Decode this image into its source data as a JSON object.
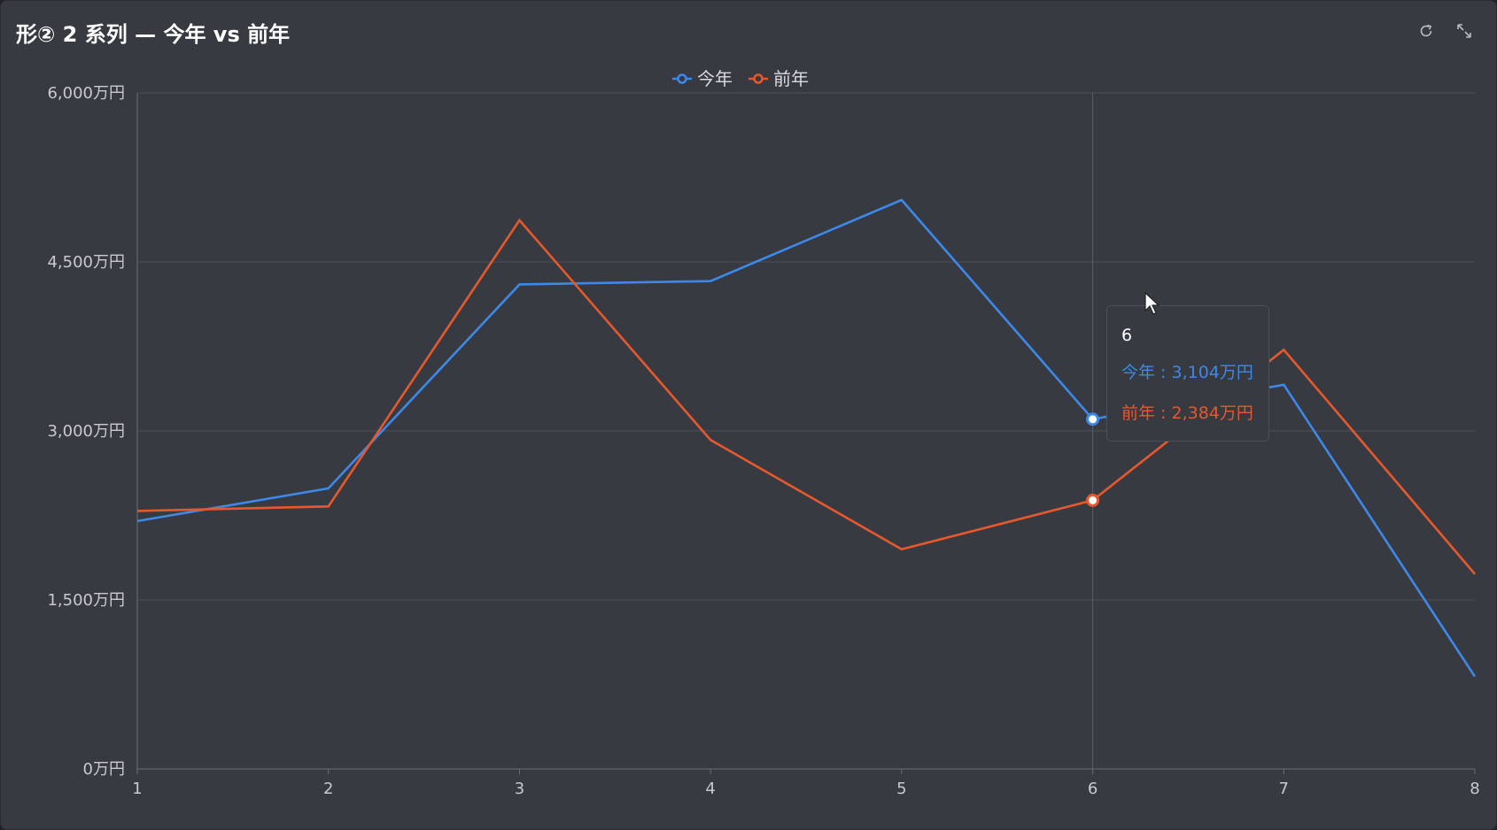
{
  "panel": {
    "title": "形② 2 系列 — 今年 vs 前年",
    "tools": [
      {
        "name": "refresh-icon",
        "label": "refresh"
      },
      {
        "name": "expand-icon",
        "label": "expand"
      }
    ]
  },
  "colors": {
    "background": "#373a40",
    "grid": "#4d5057",
    "axis_text": "#c8cacf",
    "series": [
      "#3d88e8",
      "#e6582e"
    ]
  },
  "chart_data": {
    "type": "line",
    "title": "形② 2 系列 — 今年 vs 前年",
    "x": [
      1,
      2,
      3,
      4,
      5,
      6,
      7,
      8
    ],
    "series": [
      {
        "name": "今年",
        "values": [
          2200,
          2490,
          4300,
          4330,
          5050,
          3104,
          3410,
          820
        ]
      },
      {
        "name": "前年",
        "values": [
          2290,
          2330,
          4870,
          2920,
          1950,
          2384,
          3720,
          1730
        ]
      }
    ],
    "ylim": [
      0,
      6000
    ],
    "yticks": [
      {
        "value": 0,
        "label": "0万円"
      },
      {
        "value": 1500,
        "label": "1,500万円"
      },
      {
        "value": 3000,
        "label": "3,000万円"
      },
      {
        "value": 4500,
        "label": "4,500万円"
      },
      {
        "value": 6000,
        "label": "6,000万円"
      }
    ],
    "xticks": [
      "1",
      "2",
      "3",
      "4",
      "5",
      "6",
      "7",
      "8"
    ],
    "legend_position": "top-center",
    "grid": true,
    "highlighted_x": 6
  },
  "tooltip": {
    "title": "6",
    "rows": [
      {
        "label": "今年 : 3,104万円"
      },
      {
        "label": "前年 : 2,384万円"
      }
    ]
  }
}
